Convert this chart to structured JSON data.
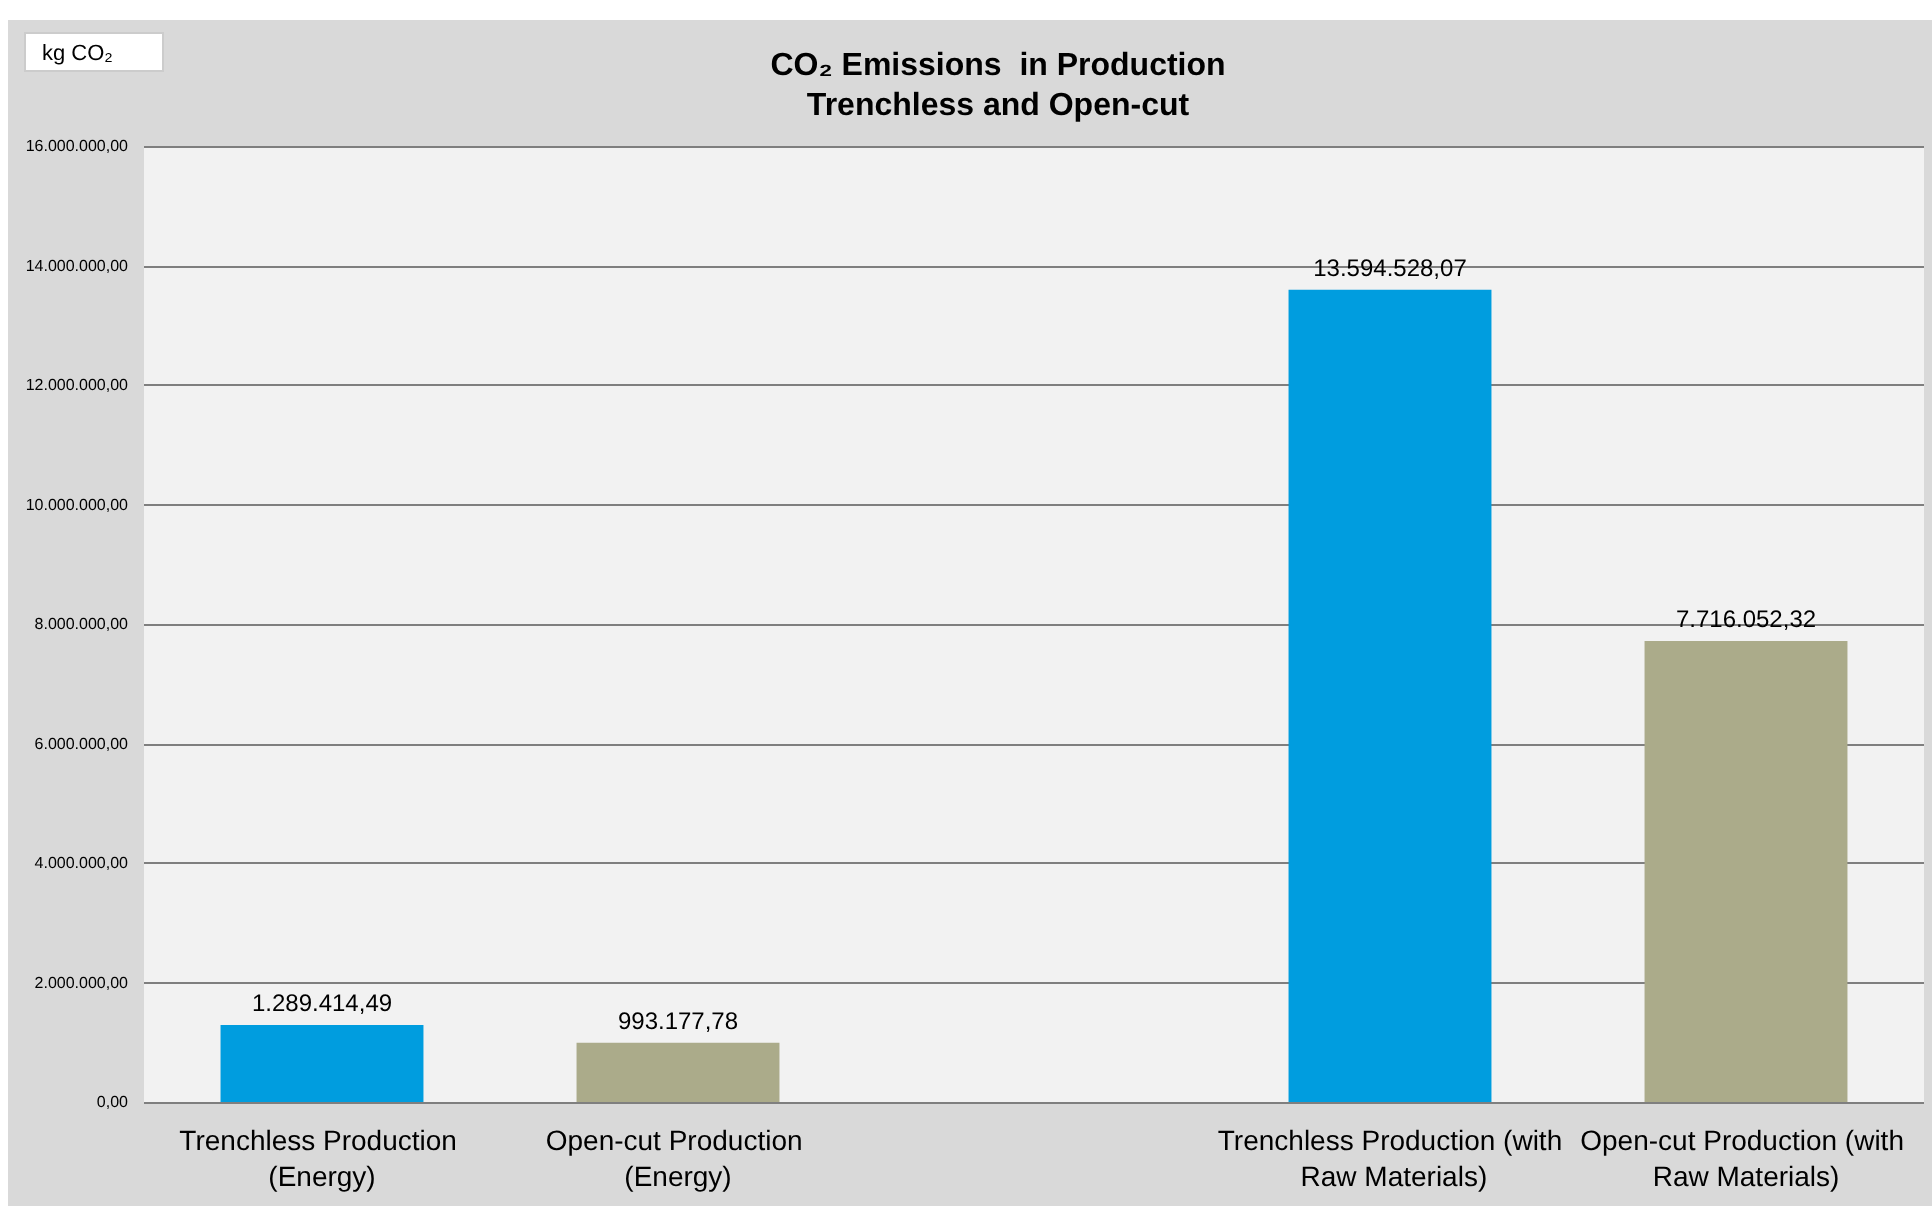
{
  "chart_data": {
    "type": "bar",
    "title": "CO₂ Emissions  in Production\nTrenchless and Open-cut",
    "ylabel": "kg CO₂",
    "categories": [
      "Trenchless Production (Energy)",
      "Open-cut Production (Energy)",
      null,
      "Trenchless Production (with Raw Materials)",
      "Open-cut Production (with Raw Materials)"
    ],
    "values": [
      1289414.49,
      993177.78,
      null,
      13594528.07,
      7716052.32
    ],
    "colors": [
      "#009ddf",
      "#abab8a",
      null,
      "#009ddf",
      "#abab8a"
    ],
    "value_labels": [
      "1.289.414,49",
      "993.177,78",
      null,
      "13.594.528,07",
      "7.716.052,32"
    ],
    "ylim": [
      0,
      16000000
    ],
    "yticks": [
      {
        "value": 0,
        "label": "0,00"
      },
      {
        "value": 2000000,
        "label": "2.000.000,00"
      },
      {
        "value": 4000000,
        "label": "4.000.000,00"
      },
      {
        "value": 6000000,
        "label": "6.000.000,00"
      },
      {
        "value": 8000000,
        "label": "8.000.000,00"
      },
      {
        "value": 10000000,
        "label": "10.000.000,00"
      },
      {
        "value": 12000000,
        "label": "12.000.000,00"
      },
      {
        "value": 14000000,
        "label": "14.000.000,00"
      },
      {
        "value": 16000000,
        "label": "16.000.000,00"
      }
    ],
    "grid": "y"
  }
}
